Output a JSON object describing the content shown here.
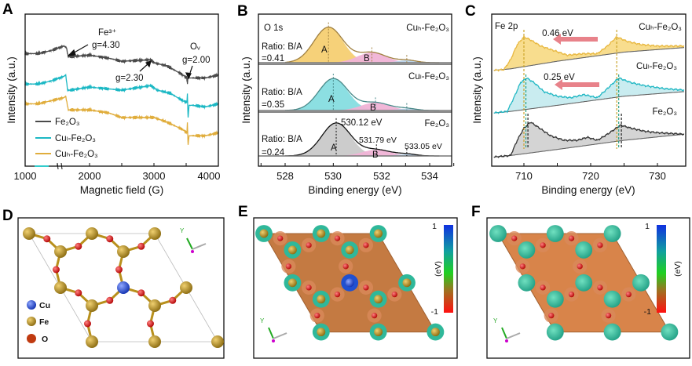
{
  "panel_labels": [
    "A",
    "B",
    "C",
    "D",
    "E",
    "F"
  ],
  "chart_data": [
    {
      "panel": "A",
      "type": "line",
      "xlabel": "Magnetic field (G)",
      "ylabel": "Intensity (a.u.)",
      "xlim": [
        1000,
        4000
      ],
      "ylim": [
        0,
        100
      ],
      "xticks": [
        "1000",
        "2000",
        "3000",
        "4000"
      ],
      "grid": false,
      "legend_placement": "bottom-left",
      "series": [
        {
          "name": "Fe₂O₃",
          "color": "#4a4a4a",
          "points": [
            [
              1000,
              74
            ],
            [
              1200,
              74
            ],
            [
              1400,
              76
            ],
            [
              1600,
              79
            ],
            [
              1640,
              78
            ],
            [
              1670,
              72
            ],
            [
              1700,
              72
            ],
            [
              2000,
              73
            ],
            [
              2300,
              71
            ],
            [
              2500,
              69
            ],
            [
              2950,
              70
            ],
            [
              3000,
              68
            ],
            [
              3200,
              66
            ],
            [
              3450,
              60
            ],
            [
              3510,
              58
            ],
            [
              3520,
              54
            ],
            [
              3530,
              61
            ],
            [
              3550,
              58
            ],
            [
              3600,
              58
            ],
            [
              3800,
              58
            ],
            [
              4000,
              60
            ]
          ]
        },
        {
          "name": "Cuₗ-Fe₂O₃",
          "color": "#1cb8c4",
          "points": [
            [
              1000,
              54
            ],
            [
              1200,
              54
            ],
            [
              1400,
              56
            ],
            [
              1600,
              59
            ],
            [
              1630,
              60
            ],
            [
              1660,
              50
            ],
            [
              1700,
              50
            ],
            [
              2000,
              52
            ],
            [
              2500,
              50
            ],
            [
              2950,
              53
            ],
            [
              3050,
              50
            ],
            [
              3250,
              48
            ],
            [
              3450,
              43
            ],
            [
              3510,
              42
            ],
            [
              3520,
              47
            ],
            [
              3530,
              32
            ],
            [
              3545,
              40
            ],
            [
              3600,
              40
            ],
            [
              3800,
              39
            ],
            [
              4000,
              41
            ]
          ]
        },
        {
          "name": "Cuₕ-Fe₂O₃",
          "color": "#e0ad3c",
          "points": [
            [
              1000,
              41
            ],
            [
              1200,
              41
            ],
            [
              1400,
              43
            ],
            [
              1600,
              45
            ],
            [
              1630,
              46
            ],
            [
              1670,
              37
            ],
            [
              1700,
              37
            ],
            [
              2000,
              37
            ],
            [
              2300,
              35
            ],
            [
              2500,
              32
            ],
            [
              3000,
              32
            ],
            [
              3200,
              29
            ],
            [
              3450,
              24
            ],
            [
              3510,
              22
            ],
            [
              3520,
              28
            ],
            [
              3530,
              14
            ],
            [
              3545,
              20
            ],
            [
              3600,
              20
            ],
            [
              3800,
              20
            ],
            [
              4000,
              22
            ]
          ]
        }
      ],
      "annotations": [
        {
          "text": "Fe³⁺"
        },
        {
          "text": "g=4.30"
        },
        {
          "text": "g=2.30"
        },
        {
          "text": "Oᵥ"
        },
        {
          "text": "g=2.00"
        }
      ]
    },
    {
      "panel": "B",
      "type": "area",
      "title": "O 1s",
      "xlabel": "Binding energy (eV)",
      "ylabel": "Intensity (a.u.)",
      "xlim": [
        526.9,
        535
      ],
      "xticks": [
        "528",
        "530",
        "532",
        "534"
      ],
      "grid": false,
      "stacks": [
        {
          "name": "Cuₕ-Fe₂O₃",
          "ratio_label": "Ratio: B/A",
          "ratio": "=0.41",
          "colors": {
            "A": "#f6cf72",
            "B": "#f0b3d6",
            "C": "#b9d3ea",
            "envelope": "#a08040"
          },
          "peaks": [
            {
              "label": "A",
              "center": 529.8,
              "height": 0.73,
              "sigma": 0.6
            },
            {
              "label": "B",
              "center": 531.6,
              "height": 0.21,
              "sigma": 0.6
            },
            {
              "label": "",
              "center": 533.05,
              "height": 0.05,
              "sigma": 0.4
            }
          ]
        },
        {
          "name": "Cuₗ-Fe₂O₃",
          "ratio_label": "Ratio: B/A",
          "ratio": "=0.35",
          "colors": {
            "A": "#86dde0",
            "B": "#f0b3d6",
            "C": "#b9d3ea",
            "envelope": "#4a8a8a"
          },
          "peaks": [
            {
              "label": "A",
              "center": 530.0,
              "height": 0.69,
              "sigma": 0.6
            },
            {
              "label": "B",
              "center": 531.75,
              "height": 0.17,
              "sigma": 0.6
            },
            {
              "label": "",
              "center": 533.05,
              "height": 0.04,
              "sigma": 0.4
            }
          ]
        },
        {
          "name": "Fe₂O₃",
          "ratio_label": "Ratio: B/A",
          "ratio": "=0.24",
          "colors": {
            "A": "#c9c9c9",
            "B": "#f0b3d6",
            "C": "#b9d3ea",
            "envelope": "#111111"
          },
          "peaks": [
            {
              "label": "A",
              "center": 530.12,
              "height": 0.75,
              "sigma": 0.6,
              "value_label": "530.12 eV"
            },
            {
              "label": "B",
              "center": 531.79,
              "height": 0.14,
              "sigma": 0.6,
              "value_label": "531.79 eV"
            },
            {
              "label": "",
              "center": 533.05,
              "height": 0.04,
              "sigma": 0.4,
              "value_label": "533.05 eV"
            }
          ]
        }
      ]
    },
    {
      "panel": "C",
      "type": "area",
      "title": "Fe 2p",
      "xlabel": "Binding energy (eV)",
      "ylabel": "Intensity (a.u.)",
      "xlim": [
        705.2,
        734.3
      ],
      "ylim": [
        0,
        100
      ],
      "xticks": [
        "710",
        "720",
        "730"
      ],
      "grid": false,
      "series": [
        {
          "name": "Cuₕ-Fe₂O₃",
          "color": "#e8b840",
          "fill": "#f8dd8e",
          "peak_markers": [
            710.0,
            723.9
          ],
          "points": [
            [
              705.5,
              63
            ],
            [
              707,
              63.5
            ],
            [
              708,
              70
            ],
            [
              709,
              80
            ],
            [
              710,
              85
            ],
            [
              711,
              83
            ],
            [
              712.5,
              79
            ],
            [
              714.5,
              76
            ],
            [
              716.5,
              73
            ],
            [
              719,
              74
            ],
            [
              721,
              74
            ],
            [
              722.5,
              79
            ],
            [
              723.9,
              85
            ],
            [
              725.5,
              82
            ],
            [
              727.5,
              80
            ],
            [
              730,
              79
            ],
            [
              734,
              79
            ]
          ],
          "background": [
            [
              705.5,
              63
            ],
            [
              708,
              64
            ],
            [
              715,
              69
            ],
            [
              720,
              72
            ],
            [
              725,
              75
            ],
            [
              734,
              78
            ]
          ]
        },
        {
          "name": "Cuₗ-Fe₂O₃",
          "color": "#22b8c4",
          "fill": "#c9ecf0",
          "peak_markers": [
            710.3,
            724.2
          ],
          "points": [
            [
              705.5,
              35
            ],
            [
              707.5,
              36
            ],
            [
              708.5,
              45
            ],
            [
              709.5,
              55
            ],
            [
              710.4,
              58
            ],
            [
              711.5,
              55
            ],
            [
              713,
              49
            ],
            [
              715,
              46
            ],
            [
              717,
              45
            ],
            [
              719,
              47
            ],
            [
              721,
              45
            ],
            [
              722.5,
              51
            ],
            [
              724.2,
              58
            ],
            [
              726,
              55
            ],
            [
              728,
              53
            ],
            [
              731,
              51
            ],
            [
              734,
              50
            ]
          ],
          "background": [
            [
              705.5,
              35
            ],
            [
              708,
              36
            ],
            [
              715,
              40
            ],
            [
              720,
              43
            ],
            [
              725,
              46
            ],
            [
              734,
              49
            ]
          ]
        },
        {
          "name": "Fe₂O₃",
          "color": "#333333",
          "fill": "#d4d4d4",
          "peak_markers": [
            710.6,
            724.6
          ],
          "points": [
            [
              705.5,
              6
            ],
            [
              708,
              7
            ],
            [
              709,
              17
            ],
            [
              710,
              25
            ],
            [
              711,
              29
            ],
            [
              712,
              26
            ],
            [
              714,
              20
            ],
            [
              716,
              17
            ],
            [
              718,
              17
            ],
            [
              719.5,
              19
            ],
            [
              721,
              17
            ],
            [
              722.5,
              21
            ],
            [
              724.5,
              27
            ],
            [
              726,
              25
            ],
            [
              728,
              23
            ],
            [
              730,
              22
            ],
            [
              734,
              21
            ]
          ],
          "background": [
            [
              705.5,
              6
            ],
            [
              708,
              7
            ],
            [
              715,
              11
            ],
            [
              720,
              14
            ],
            [
              725,
              17
            ],
            [
              734,
              21
            ]
          ]
        }
      ],
      "shifts": [
        {
          "text": "0.46 eV",
          "arrow_color": "#e8828a"
        },
        {
          "text": "0.25 eV",
          "arrow_color": "#e8828a"
        }
      ]
    }
  ],
  "structures": {
    "D": {
      "legend": [
        {
          "label": "Cu",
          "color": "#2040d0"
        },
        {
          "label": "Fe",
          "color": "#c8a030"
        },
        {
          "label": "O",
          "color": "#d03010"
        }
      ],
      "axis_label": "Y"
    },
    "E": {
      "axis_label": "Y",
      "colorbar": {
        "max": "1",
        "min": "-1",
        "unit": "(eV)"
      }
    },
    "F": {
      "axis_label": "Y",
      "colorbar": {
        "max": "1",
        "min": "-1",
        "unit": "(eV)"
      }
    }
  }
}
